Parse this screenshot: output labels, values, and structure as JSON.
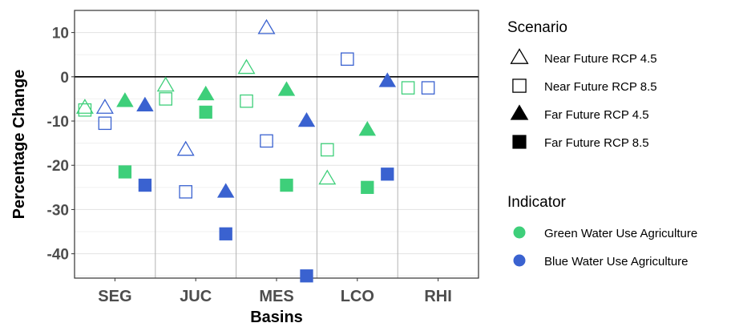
{
  "chart_data": {
    "type": "scatter",
    "xlabel": "Basins",
    "ylabel": "Percentage Change",
    "categories": [
      "SEG",
      "JUC",
      "MES",
      "LCO",
      "RHI"
    ],
    "ylim": [
      -45.5,
      15
    ],
    "yticks": [
      10,
      0,
      -10,
      -20,
      -30,
      -40
    ],
    "zero_line": 0,
    "scenarios": [
      {
        "key": "nf45",
        "label": "Near Future RCP 4.5",
        "shape": "triangle",
        "filled": false
      },
      {
        "key": "nf85",
        "label": "Near Future RCP 8.5",
        "shape": "square",
        "filled": false
      },
      {
        "key": "ff45",
        "label": "Far Future RCP 4.5",
        "shape": "triangle",
        "filled": true
      },
      {
        "key": "ff85",
        "label": "Far Future RCP 8.5",
        "shape": "square",
        "filled": true
      }
    ],
    "indicators": [
      {
        "key": "green",
        "label": "Green Water Use Agriculture",
        "color": "#3ecf7a"
      },
      {
        "key": "blue",
        "label": "Blue Water Use Agriculture",
        "color": "#3a62d0"
      }
    ],
    "legend": {
      "scenario_title": "Scenario",
      "indicator_title": "Indicator",
      "placement": "right"
    },
    "series": [
      {
        "indicator": "green",
        "scenario": "nf45",
        "values": [
          -7,
          -2,
          2,
          -23,
          null
        ]
      },
      {
        "indicator": "green",
        "scenario": "nf85",
        "values": [
          -7.5,
          -5,
          -5.5,
          -16.5,
          -2.5
        ]
      },
      {
        "indicator": "green",
        "scenario": "ff45",
        "values": [
          -5.5,
          -4,
          -3,
          -12,
          null
        ]
      },
      {
        "indicator": "green",
        "scenario": "ff85",
        "values": [
          -21.5,
          -8,
          -24.5,
          -25,
          null
        ]
      },
      {
        "indicator": "blue",
        "scenario": "nf45",
        "values": [
          -7,
          -16.5,
          11,
          null,
          null
        ]
      },
      {
        "indicator": "blue",
        "scenario": "nf85",
        "values": [
          -10.5,
          -26,
          -14.5,
          4,
          -2.5
        ]
      },
      {
        "indicator": "blue",
        "scenario": "ff45",
        "values": [
          -6.5,
          -26,
          -10,
          -1,
          null
        ]
      },
      {
        "indicator": "blue",
        "scenario": "ff85",
        "values": [
          -24.5,
          -35.5,
          -45,
          -22,
          null
        ]
      }
    ]
  }
}
